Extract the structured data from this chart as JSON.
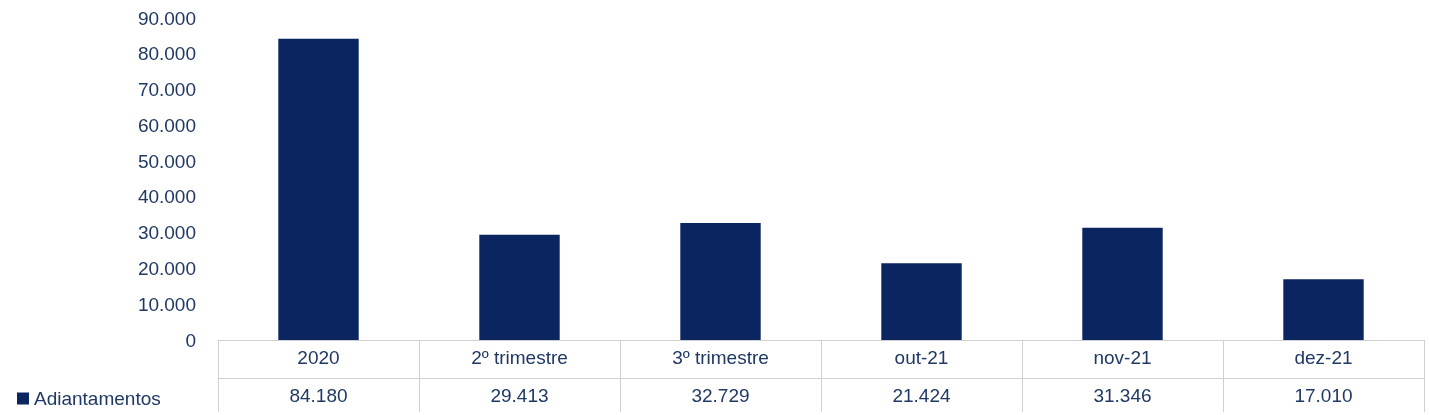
{
  "chart_data": {
    "type": "bar",
    "categories": [
      "2020",
      "2º trimestre",
      "3º trimestre",
      "out-21",
      "nov-21",
      "dez-21"
    ],
    "series": [
      {
        "name": "Adiantamentos",
        "color": "#0b2560",
        "values": [
          84180,
          29413,
          32729,
          21424,
          31346,
          17010
        ],
        "value_labels": [
          "84.180",
          "29.413",
          "32.729",
          "21.424",
          "31.346",
          "17.010"
        ]
      }
    ],
    "ylim": [
      0,
      90000
    ],
    "yticks": [
      {
        "value": 0,
        "label": "0"
      },
      {
        "value": 10000,
        "label": "10.000"
      },
      {
        "value": 20000,
        "label": "20.000"
      },
      {
        "value": 30000,
        "label": "30.000"
      },
      {
        "value": 40000,
        "label": "40.000"
      },
      {
        "value": 50000,
        "label": "50.000"
      },
      {
        "value": 60000,
        "label": "60.000"
      },
      {
        "value": 70000,
        "label": "70.000"
      },
      {
        "value": 80000,
        "label": "80.000"
      },
      {
        "value": 90000,
        "label": "90.000"
      }
    ],
    "grid": false,
    "legend": "bottom left"
  }
}
